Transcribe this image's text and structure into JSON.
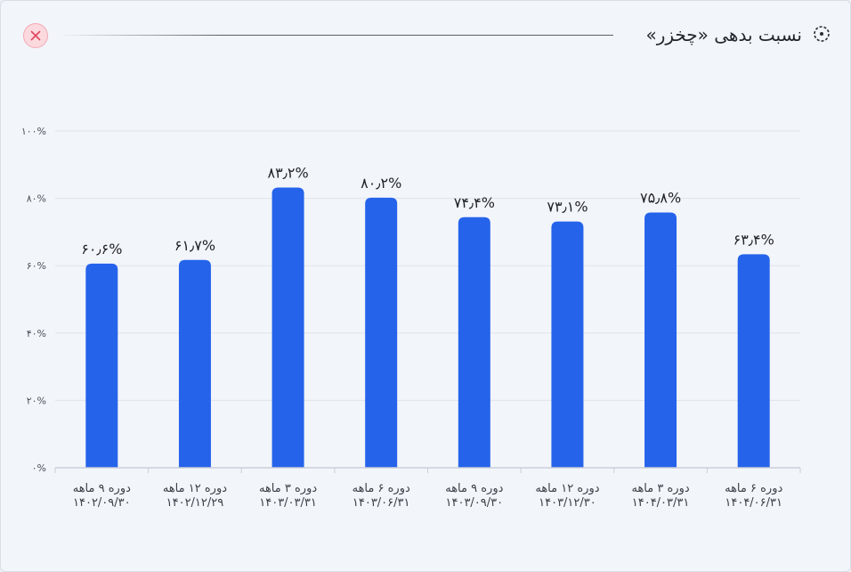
{
  "header": {
    "title": "نسبت بدهی «چخزر»",
    "title_icon": "dotted-circle-icon",
    "close_icon": "close-x-icon"
  },
  "colors": {
    "bar": "#2563eb",
    "grid": "#dfe3ea",
    "close_bg": "#fbd9de",
    "close_x": "#e0455c"
  },
  "chart_data": {
    "type": "bar",
    "title": "نسبت بدهی «چخزر»",
    "categories": [
      [
        "دوره ۹ ماهه",
        "۱۴۰۲/۰۹/۳۰"
      ],
      [
        "دوره ۱۲ ماهه",
        "۱۴۰۲/۱۲/۲۹"
      ],
      [
        "دوره ۳ ماهه",
        "۱۴۰۳/۰۳/۳۱"
      ],
      [
        "دوره ۶ ماهه",
        "۱۴۰۳/۰۶/۳۱"
      ],
      [
        "دوره ۹ ماهه",
        "۱۴۰۳/۰۹/۳۰"
      ],
      [
        "دوره ۱۲ ماهه",
        "۱۴۰۳/۱۲/۳۰"
      ],
      [
        "دوره ۳ ماهه",
        "۱۴۰۴/۰۳/۳۱"
      ],
      [
        "دوره ۶ ماهه",
        "۱۴۰۴/۰۶/۳۱"
      ]
    ],
    "values": [
      60.6,
      61.7,
      83.2,
      80.2,
      74.4,
      73.1,
      75.8,
      63.4
    ],
    "value_labels": [
      "۶۰٫۶%",
      "۶۱٫۷%",
      "۸۳٫۲%",
      "۸۰٫۲%",
      "۷۴٫۴%",
      "۷۳٫۱%",
      "۷۵٫۸%",
      "۶۳٫۴%"
    ],
    "yticks": [
      0,
      20,
      40,
      60,
      80,
      100
    ],
    "ytick_labels": [
      "۰%",
      "۲۰%",
      "۴۰%",
      "۶۰%",
      "۸۰%",
      "۱۰۰%"
    ],
    "ylim": [
      0,
      100
    ],
    "grid": true,
    "xlabel": "",
    "ylabel": ""
  }
}
